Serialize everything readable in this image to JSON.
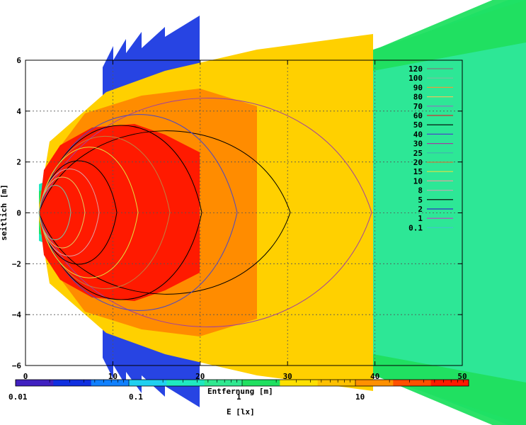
{
  "chart_data": {
    "type": "heatmap",
    "xlabel": "Entfernung [m]",
    "ylabel": "seitlich [m]",
    "xlim": [
      0,
      50
    ],
    "ylim": [
      -6,
      6
    ],
    "xticks": [
      "0",
      "10",
      "20",
      "30",
      "40",
      "50"
    ],
    "yticks": [
      "6",
      "4",
      "2",
      "0",
      "−2",
      "−4",
      "−6"
    ],
    "grid": true,
    "legend_position": "top-right",
    "contour_levels": [
      {
        "label": "120",
        "color": "#7d7d7d"
      },
      {
        "label": "100",
        "color": "#7ec0a0"
      },
      {
        "label": "90",
        "color": "#e0a040"
      },
      {
        "label": "80",
        "color": "#e0c860"
      },
      {
        "label": "70",
        "color": "#9070c0"
      },
      {
        "label": "60",
        "color": "#d03030"
      },
      {
        "label": "50",
        "color": "#000000"
      },
      {
        "label": "40",
        "color": "#4848c8"
      },
      {
        "label": "30",
        "color": "#a040a0"
      },
      {
        "label": "25",
        "color": "#40b0b0"
      },
      {
        "label": "20",
        "color": "#c08040"
      },
      {
        "label": "15",
        "color": "#e0e040"
      },
      {
        "label": "10",
        "color": "#e0a0a0"
      },
      {
        "label": "8",
        "color": "#b0b0b0"
      },
      {
        "label": "5",
        "color": "#000000"
      },
      {
        "label": "2",
        "color": "#3030c0"
      },
      {
        "label": "1",
        "color": "#c040c0"
      },
      {
        "label": "0.1",
        "color": "#40c8c8"
      }
    ],
    "colorbar": {
      "label": "E [lx]",
      "scale": "log",
      "range": [
        0.01,
        100
      ],
      "tick_labels": [
        "0.01",
        "0.1",
        "1",
        "10"
      ]
    },
    "colors": {
      "red": "#ff1a00",
      "orange": "#ff8c00",
      "yellow": "#ffd000",
      "green": "#20e060",
      "cyan": "#20e8c0",
      "blue": "#1030e0"
    }
  }
}
